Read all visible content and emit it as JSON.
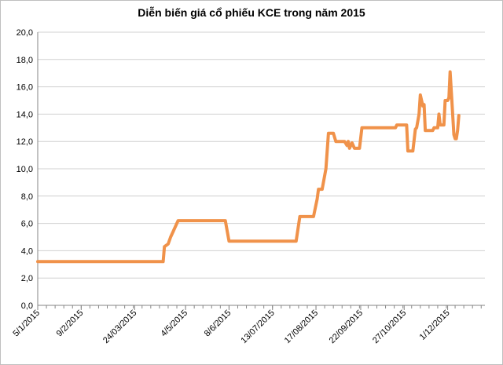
{
  "chart_data": {
    "type": "line",
    "title": "Diễn biến giá cổ phiếu KCE trong năm 2015",
    "xlabel": "",
    "ylabel": "",
    "ylim": [
      0,
      20
    ],
    "yticks": [
      "0,0",
      "2,0",
      "4,0",
      "6,0",
      "8,0",
      "10,0",
      "12,0",
      "14,0",
      "16,0",
      "18,0",
      "20,0"
    ],
    "xlim": [
      "2015-01-05",
      "2015-12-31"
    ],
    "xticks": [
      {
        "date": "2015-01-05",
        "label": "5/1/2015"
      },
      {
        "date": "2015-02-09",
        "label": "9/2/2015"
      },
      {
        "date": "2015-03-24",
        "label": "24/03/2015"
      },
      {
        "date": "2015-05-04",
        "label": "4/5/2015"
      },
      {
        "date": "2015-06-08",
        "label": "8/6/2015"
      },
      {
        "date": "2015-07-13",
        "label": "13/07/2015"
      },
      {
        "date": "2015-08-17",
        "label": "17/08/2015"
      },
      {
        "date": "2015-09-22",
        "label": "22/09/2015"
      },
      {
        "date": "2015-10-27",
        "label": "27/10/2015"
      },
      {
        "date": "2015-12-01",
        "label": "1/12/2015"
      }
    ],
    "grid": true,
    "legend": "none",
    "color": "#f0924a",
    "series": [
      {
        "points": [
          [
            "2015-01-05",
            3.2
          ],
          [
            "2015-04-16",
            3.2
          ],
          [
            "2015-04-17",
            4.3
          ],
          [
            "2015-04-20",
            4.5
          ],
          [
            "2015-04-22",
            5.0
          ],
          [
            "2015-04-24",
            5.4
          ],
          [
            "2015-04-28",
            6.2
          ],
          [
            "2015-06-05",
            6.2
          ],
          [
            "2015-06-08",
            4.7
          ],
          [
            "2015-08-01",
            4.7
          ],
          [
            "2015-08-04",
            6.5
          ],
          [
            "2015-08-15",
            6.5
          ],
          [
            "2015-08-18",
            7.8
          ],
          [
            "2015-08-19",
            8.5
          ],
          [
            "2015-08-22",
            8.5
          ],
          [
            "2015-08-25",
            10.0
          ],
          [
            "2015-08-27",
            12.6
          ],
          [
            "2015-08-31",
            12.6
          ],
          [
            "2015-09-02",
            12.0
          ],
          [
            "2015-09-09",
            12.0
          ],
          [
            "2015-09-11",
            11.7
          ],
          [
            "2015-09-12",
            12.0
          ],
          [
            "2015-09-13",
            11.5
          ],
          [
            "2015-09-15",
            11.9
          ],
          [
            "2015-09-17",
            11.5
          ],
          [
            "2015-09-21",
            11.5
          ],
          [
            "2015-09-23",
            13.0
          ],
          [
            "2015-10-20",
            13.0
          ],
          [
            "2015-10-21",
            13.2
          ],
          [
            "2015-10-29",
            13.2
          ],
          [
            "2015-10-30",
            11.3
          ],
          [
            "2015-11-03",
            11.3
          ],
          [
            "2015-11-05",
            12.9
          ],
          [
            "2015-11-06",
            13.0
          ],
          [
            "2015-11-08",
            14.0
          ],
          [
            "2015-11-09",
            15.4
          ],
          [
            "2015-11-11",
            14.6
          ],
          [
            "2015-11-12",
            14.7
          ],
          [
            "2015-11-13",
            12.8
          ],
          [
            "2015-11-19",
            12.8
          ],
          [
            "2015-11-20",
            13.0
          ],
          [
            "2015-11-23",
            13.0
          ],
          [
            "2015-11-24",
            14.0
          ],
          [
            "2015-11-25",
            13.2
          ],
          [
            "2015-11-28",
            13.2
          ],
          [
            "2015-11-29",
            15.0
          ],
          [
            "2015-12-01",
            15.0
          ],
          [
            "2015-12-02",
            15.2
          ],
          [
            "2015-12-03",
            17.1
          ],
          [
            "2015-12-04",
            15.6
          ],
          [
            "2015-12-06",
            12.5
          ],
          [
            "2015-12-07",
            12.2
          ],
          [
            "2015-12-08",
            12.2
          ],
          [
            "2015-12-09",
            12.8
          ],
          [
            "2015-12-10",
            13.9
          ]
        ]
      }
    ]
  }
}
